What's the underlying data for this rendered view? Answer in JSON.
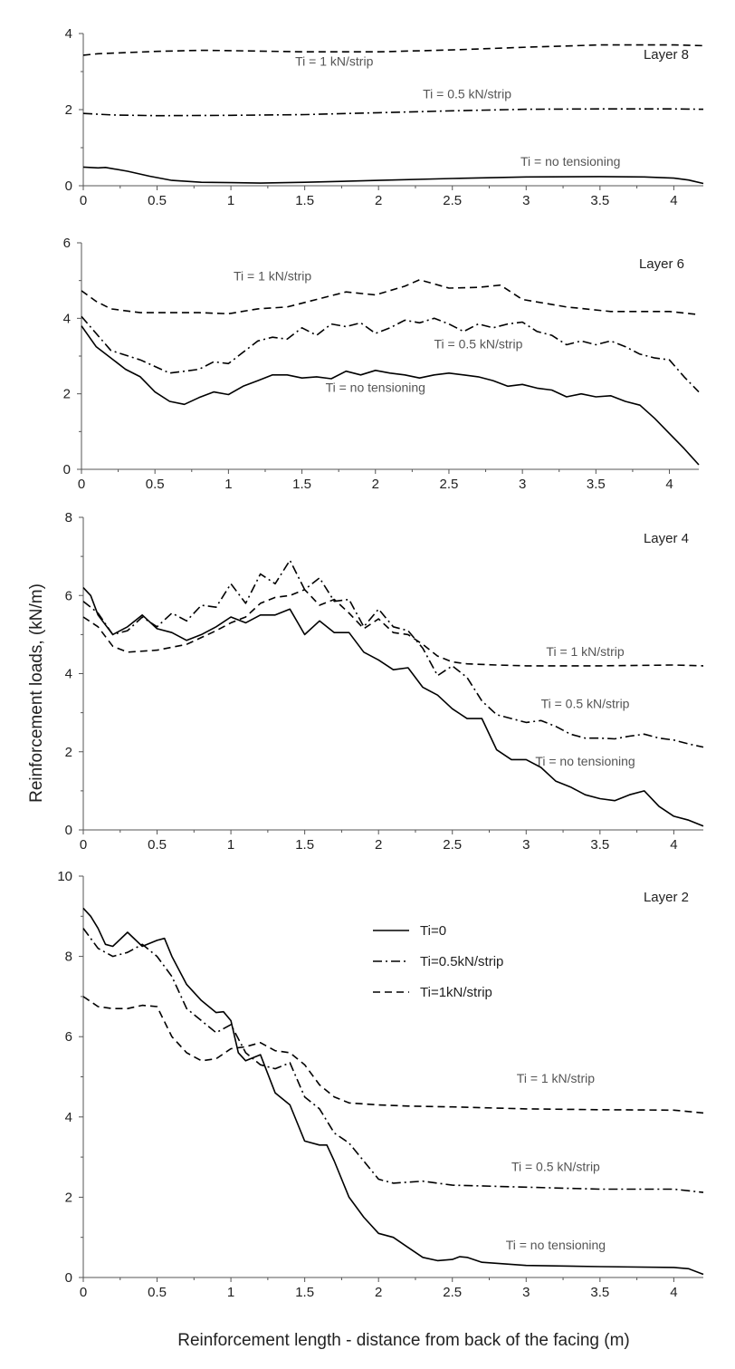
{
  "figure": {
    "ylabel": "Reinforcement loads, (kN/m)",
    "xlabel": "Reinforcement length - distance from back of the facing (m)"
  },
  "chart_data": [
    {
      "type": "line",
      "panel_label": "Layer 8",
      "xlim": [
        0,
        4.2
      ],
      "ylim": [
        0,
        4
      ],
      "xticks": [
        0,
        0.5,
        1,
        1.5,
        2,
        2.5,
        3,
        3.5,
        4
      ],
      "xtick_labels": [
        "0",
        "0.5",
        "1",
        "1.5",
        "2",
        "2.5",
        "3",
        "3.5",
        "4"
      ],
      "yticks": [
        0,
        2,
        4
      ],
      "ytick_labels": [
        "0",
        "2",
        "4"
      ],
      "grid": false,
      "series": [
        {
          "style": "dashed",
          "label": "Ti = 1 kN/strip",
          "x": [
            0,
            0.1,
            0.3,
            0.5,
            0.8,
            1.0,
            1.5,
            2.0,
            2.5,
            3.0,
            3.5,
            4.0,
            4.2
          ],
          "y": [
            3.43,
            3.47,
            3.5,
            3.53,
            3.56,
            3.55,
            3.52,
            3.52,
            3.57,
            3.64,
            3.7,
            3.7,
            3.68
          ]
        },
        {
          "style": "dashdot",
          "label": "Ti = 0.5 kN/strip",
          "x": [
            0,
            0.2,
            0.5,
            1.0,
            1.5,
            2.0,
            2.5,
            3.0,
            3.5,
            4.0,
            4.2
          ],
          "y": [
            1.9,
            1.86,
            1.84,
            1.85,
            1.87,
            1.92,
            1.97,
            2.01,
            2.02,
            2.02,
            2.01
          ]
        },
        {
          "style": "solid",
          "label": "Ti = no tensioning",
          "x": [
            0,
            0.1,
            0.15,
            0.3,
            0.45,
            0.6,
            0.8,
            1.0,
            1.2,
            1.5,
            2.0,
            2.5,
            3.0,
            3.5,
            3.8,
            4.0,
            4.1,
            4.2
          ],
          "y": [
            0.49,
            0.47,
            0.48,
            0.38,
            0.25,
            0.14,
            0.09,
            0.08,
            0.07,
            0.09,
            0.14,
            0.19,
            0.23,
            0.24,
            0.23,
            0.2,
            0.15,
            0.06
          ]
        }
      ],
      "annotations": [
        {
          "text": "Ti = 1 kN/strip",
          "x": 1.7,
          "y": 3.15
        },
        {
          "text": "Ti = 0.5 kN/strip",
          "x": 2.6,
          "y": 2.3
        },
        {
          "text": "Ti = no tensioning",
          "x": 3.3,
          "y": 0.52
        }
      ]
    },
    {
      "type": "line",
      "panel_label": "Layer 6",
      "xlim": [
        0,
        4.2
      ],
      "ylim": [
        0,
        6
      ],
      "xticks": [
        0,
        0.5,
        1,
        1.5,
        2,
        2.5,
        3,
        3.5,
        4
      ],
      "xtick_labels": [
        "0",
        "0.5",
        "1",
        "1.5",
        "2",
        "2.5",
        "3",
        "3.5",
        "4"
      ],
      "yticks": [
        0,
        2,
        4,
        6
      ],
      "ytick_labels": [
        "0",
        "2",
        "4",
        "6"
      ],
      "grid": false,
      "series": [
        {
          "style": "dashed",
          "label": "Ti = 1 kN/strip",
          "x": [
            0,
            0.1,
            0.2,
            0.4,
            0.8,
            1.0,
            1.2,
            1.4,
            1.6,
            1.8,
            2.0,
            2.2,
            2.3,
            2.5,
            2.7,
            2.85,
            3.0,
            3.3,
            3.6,
            4.0,
            4.2
          ],
          "y": [
            4.73,
            4.45,
            4.25,
            4.15,
            4.15,
            4.12,
            4.25,
            4.3,
            4.5,
            4.7,
            4.62,
            4.85,
            5.02,
            4.8,
            4.82,
            4.88,
            4.5,
            4.3,
            4.18,
            4.18,
            4.1
          ]
        },
        {
          "style": "dashdot",
          "label": "Ti = 0.5 kN/strip",
          "x": [
            0,
            0.1,
            0.2,
            0.4,
            0.6,
            0.8,
            0.9,
            1.0,
            1.1,
            1.2,
            1.3,
            1.4,
            1.5,
            1.6,
            1.7,
            1.8,
            1.9,
            2.0,
            2.1,
            2.2,
            2.3,
            2.4,
            2.5,
            2.6,
            2.7,
            2.8,
            2.9,
            3.0,
            3.1,
            3.2,
            3.3,
            3.4,
            3.5,
            3.6,
            3.7,
            3.8,
            3.9,
            4.0,
            4.1,
            4.2
          ],
          "y": [
            4.05,
            3.6,
            3.15,
            2.9,
            2.55,
            2.65,
            2.85,
            2.8,
            3.1,
            3.4,
            3.5,
            3.45,
            3.75,
            3.55,
            3.85,
            3.78,
            3.88,
            3.6,
            3.75,
            3.95,
            3.88,
            4.0,
            3.85,
            3.65,
            3.85,
            3.75,
            3.85,
            3.9,
            3.65,
            3.55,
            3.3,
            3.4,
            3.3,
            3.4,
            3.25,
            3.05,
            2.95,
            2.9,
            2.45,
            2.05
          ]
        },
        {
          "style": "solid",
          "label": "Ti = no tensioning",
          "x": [
            0,
            0.1,
            0.2,
            0.3,
            0.4,
            0.5,
            0.6,
            0.7,
            0.8,
            0.9,
            1.0,
            1.1,
            1.2,
            1.3,
            1.4,
            1.5,
            1.6,
            1.7,
            1.8,
            1.9,
            2.0,
            2.1,
            2.2,
            2.3,
            2.4,
            2.5,
            2.6,
            2.7,
            2.8,
            2.9,
            3.0,
            3.1,
            3.2,
            3.3,
            3.4,
            3.5,
            3.6,
            3.7,
            3.8,
            3.9,
            4.0,
            4.1,
            4.2
          ],
          "y": [
            3.8,
            3.25,
            2.95,
            2.65,
            2.45,
            2.05,
            1.8,
            1.72,
            1.9,
            2.05,
            1.98,
            2.2,
            2.35,
            2.5,
            2.5,
            2.42,
            2.45,
            2.4,
            2.6,
            2.5,
            2.62,
            2.55,
            2.5,
            2.42,
            2.5,
            2.55,
            2.5,
            2.45,
            2.35,
            2.2,
            2.25,
            2.15,
            2.1,
            1.92,
            2.0,
            1.92,
            1.95,
            1.8,
            1.7,
            1.35,
            0.95,
            0.55,
            0.12
          ]
        }
      ],
      "annotations": [
        {
          "text": "Ti = 1 kN/strip",
          "x": 1.3,
          "y": 5.0
        },
        {
          "text": "Ti = 0.5 kN/strip",
          "x": 2.7,
          "y": 3.2
        },
        {
          "text": "Ti = no tensioning",
          "x": 2.0,
          "y": 2.05
        }
      ]
    },
    {
      "type": "line",
      "panel_label": "Layer 4",
      "xlim": [
        0,
        4.2
      ],
      "ylim": [
        0,
        8
      ],
      "xticks": [
        0,
        0.5,
        1,
        1.5,
        2,
        2.5,
        3,
        3.5,
        4
      ],
      "xtick_labels": [
        "0",
        "0.5",
        "1",
        "1.5",
        "2",
        "2.5",
        "3",
        "3.5",
        "4"
      ],
      "yticks": [
        0,
        2,
        4,
        6,
        8
      ],
      "ytick_labels": [
        "0",
        "2",
        "4",
        "6",
        "8"
      ],
      "grid": false,
      "series": [
        {
          "style": "dashed",
          "label": "Ti = 1 kN/strip",
          "x": [
            0,
            0.1,
            0.2,
            0.3,
            0.5,
            0.7,
            0.9,
            1.0,
            1.1,
            1.2,
            1.3,
            1.4,
            1.5,
            1.6,
            1.7,
            1.8,
            1.9,
            2.0,
            2.1,
            2.2,
            2.3,
            2.4,
            2.5,
            2.6,
            2.8,
            3.0,
            3.5,
            4.0,
            4.2
          ],
          "y": [
            5.45,
            5.2,
            4.7,
            4.55,
            4.6,
            4.75,
            5.1,
            5.3,
            5.45,
            5.8,
            5.95,
            6.0,
            6.15,
            5.75,
            5.9,
            5.55,
            5.15,
            5.4,
            5.05,
            5.0,
            4.75,
            4.45,
            4.3,
            4.25,
            4.22,
            4.2,
            4.2,
            4.22,
            4.2
          ]
        },
        {
          "style": "dashdot",
          "label": "Ti = 0.5 kN/strip",
          "x": [
            0,
            0.1,
            0.2,
            0.3,
            0.4,
            0.5,
            0.6,
            0.7,
            0.8,
            0.9,
            1.0,
            1.1,
            1.2,
            1.3,
            1.4,
            1.5,
            1.6,
            1.7,
            1.8,
            1.9,
            2.0,
            2.1,
            2.2,
            2.3,
            2.4,
            2.5,
            2.6,
            2.7,
            2.8,
            2.9,
            3.0,
            3.1,
            3.2,
            3.3,
            3.4,
            3.5,
            3.6,
            3.7,
            3.8,
            3.9,
            4.0,
            4.1,
            4.2
          ],
          "y": [
            5.85,
            5.55,
            5.0,
            5.1,
            5.45,
            5.2,
            5.55,
            5.35,
            5.75,
            5.7,
            6.3,
            5.8,
            6.55,
            6.3,
            6.9,
            6.15,
            6.45,
            5.85,
            5.9,
            5.2,
            5.65,
            5.2,
            5.1,
            4.65,
            3.95,
            4.2,
            3.9,
            3.3,
            2.95,
            2.85,
            2.75,
            2.8,
            2.65,
            2.45,
            2.35,
            2.35,
            2.33,
            2.4,
            2.45,
            2.35,
            2.3,
            2.2,
            2.12
          ]
        },
        {
          "style": "solid",
          "label": "Ti = no tensioning",
          "x": [
            0,
            0.05,
            0.1,
            0.2,
            0.3,
            0.4,
            0.5,
            0.6,
            0.7,
            0.8,
            0.9,
            1.0,
            1.1,
            1.2,
            1.3,
            1.4,
            1.5,
            1.6,
            1.7,
            1.8,
            1.9,
            2.0,
            2.1,
            2.2,
            2.3,
            2.4,
            2.5,
            2.6,
            2.7,
            2.8,
            2.9,
            3.0,
            3.1,
            3.2,
            3.3,
            3.4,
            3.5,
            3.6,
            3.7,
            3.8,
            3.9,
            4.0,
            4.1,
            4.2
          ],
          "y": [
            6.2,
            6.0,
            5.5,
            5.0,
            5.2,
            5.5,
            5.15,
            5.05,
            4.85,
            5.0,
            5.2,
            5.45,
            5.3,
            5.5,
            5.5,
            5.65,
            5.0,
            5.35,
            5.05,
            5.05,
            4.55,
            4.35,
            4.1,
            4.15,
            3.65,
            3.45,
            3.1,
            2.85,
            2.85,
            2.05,
            1.8,
            1.8,
            1.6,
            1.25,
            1.1,
            0.9,
            0.8,
            0.75,
            0.9,
            1.0,
            0.6,
            0.35,
            0.25,
            0.1
          ]
        }
      ],
      "annotations": [
        {
          "text": "Ti = 1 kN/strip",
          "x": 3.4,
          "y": 4.45
        },
        {
          "text": "Ti = 0.5 kN/strip",
          "x": 3.4,
          "y": 3.12
        },
        {
          "text": "Ti = no tensioning",
          "x": 3.4,
          "y": 1.65
        }
      ]
    },
    {
      "type": "line",
      "panel_label": "Layer 2",
      "xlim": [
        0,
        4.2
      ],
      "ylim": [
        0,
        10
      ],
      "xticks": [
        0,
        0.5,
        1,
        1.5,
        2,
        2.5,
        3,
        3.5,
        4
      ],
      "xtick_labels": [
        "0",
        "0.5",
        "1",
        "1.5",
        "2",
        "2.5",
        "3",
        "3.5",
        "4"
      ],
      "yticks": [
        0,
        2,
        4,
        6,
        8,
        10
      ],
      "ytick_labels": [
        "0",
        "2",
        "4",
        "6",
        "8",
        "10"
      ],
      "grid": false,
      "legend": {
        "position": "upper-middle",
        "entries": [
          {
            "label": "Ti=0",
            "style": "solid"
          },
          {
            "label": "Ti=0.5kN/strip",
            "style": "dashdot"
          },
          {
            "label": "Ti=1kN/strip",
            "style": "dashed"
          }
        ]
      },
      "series": [
        {
          "style": "dashed",
          "name": "Ti=1kN/strip",
          "x": [
            0,
            0.1,
            0.2,
            0.3,
            0.4,
            0.5,
            0.6,
            0.7,
            0.8,
            0.9,
            1.0,
            1.1,
            1.2,
            1.3,
            1.4,
            1.5,
            1.6,
            1.7,
            1.8,
            2.0,
            2.2,
            2.5,
            3.0,
            3.5,
            4.0,
            4.2
          ],
          "y": [
            7.0,
            6.75,
            6.7,
            6.7,
            6.78,
            6.75,
            6.0,
            5.6,
            5.4,
            5.45,
            5.7,
            5.75,
            5.85,
            5.65,
            5.6,
            5.3,
            4.8,
            4.5,
            4.35,
            4.3,
            4.27,
            4.25,
            4.2,
            4.18,
            4.17,
            4.1
          ]
        },
        {
          "style": "dashdot",
          "name": "Ti=0.5kN/strip",
          "x": [
            0,
            0.1,
            0.2,
            0.3,
            0.4,
            0.5,
            0.6,
            0.7,
            0.8,
            0.9,
            1.0,
            1.1,
            1.2,
            1.3,
            1.4,
            1.5,
            1.6,
            1.7,
            1.8,
            1.9,
            2.0,
            2.1,
            2.3,
            2.5,
            3.0,
            3.5,
            4.0,
            4.2
          ],
          "y": [
            8.7,
            8.2,
            8.0,
            8.1,
            8.3,
            8.0,
            7.5,
            6.7,
            6.4,
            6.1,
            6.3,
            5.6,
            5.3,
            5.2,
            5.35,
            4.5,
            4.2,
            3.6,
            3.35,
            2.9,
            2.45,
            2.35,
            2.4,
            2.3,
            2.25,
            2.2,
            2.2,
            2.12
          ]
        },
        {
          "style": "solid",
          "name": "Ti=0",
          "x": [
            0,
            0.05,
            0.1,
            0.15,
            0.2,
            0.3,
            0.4,
            0.5,
            0.55,
            0.6,
            0.7,
            0.8,
            0.9,
            0.95,
            1.0,
            1.05,
            1.1,
            1.2,
            1.3,
            1.4,
            1.5,
            1.6,
            1.65,
            1.7,
            1.8,
            1.9,
            2.0,
            2.1,
            2.2,
            2.3,
            2.4,
            2.5,
            2.55,
            2.6,
            2.7,
            3.0,
            3.5,
            4.0,
            4.1,
            4.2
          ],
          "y": [
            9.2,
            9.0,
            8.7,
            8.3,
            8.25,
            8.6,
            8.25,
            8.4,
            8.45,
            8.0,
            7.3,
            6.9,
            6.6,
            6.62,
            6.4,
            5.6,
            5.4,
            5.55,
            4.6,
            4.3,
            3.4,
            3.3,
            3.3,
            2.9,
            2.0,
            1.5,
            1.1,
            1.0,
            0.75,
            0.5,
            0.42,
            0.45,
            0.52,
            0.5,
            0.38,
            0.3,
            0.27,
            0.25,
            0.22,
            0.08
          ]
        }
      ],
      "annotations": [
        {
          "text": "Ti = 1 kN/strip",
          "x": 3.2,
          "y": 4.85
        },
        {
          "text": "Ti = 0.5 kN/strip",
          "x": 3.2,
          "y": 2.65
        },
        {
          "text": "Ti = no tensioning",
          "x": 3.2,
          "y": 0.7
        }
      ]
    }
  ]
}
